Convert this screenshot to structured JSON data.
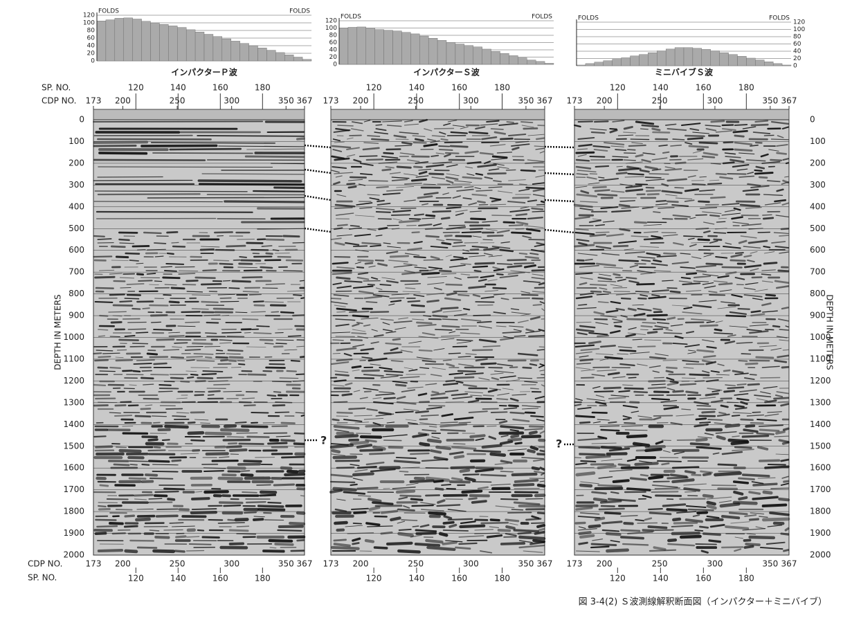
{
  "depth_axis": {
    "label": "DEPTH IN METERS",
    "ticks": [
      0,
      100,
      200,
      300,
      400,
      500,
      600,
      700,
      800,
      900,
      1000,
      1100,
      1200,
      1300,
      1400,
      1500,
      1600,
      1700,
      1800,
      1900,
      2000
    ]
  },
  "row_labels": {
    "sp": "SP. NO.",
    "cdp": "CDP NO."
  },
  "panels": [
    {
      "title": "インパクターＰ波",
      "folds_label_left": "FOLDS",
      "folds_label_right": "FOLDS",
      "fold_ticks": [
        0,
        20,
        40,
        60,
        80,
        100,
        120
      ],
      "folds": [
        105,
        108,
        112,
        113,
        110,
        104,
        100,
        96,
        92,
        88,
        82,
        76,
        70,
        64,
        58,
        52,
        46,
        40,
        34,
        28,
        22,
        16,
        10,
        4
      ],
      "sp_ticks": [
        120,
        140,
        160,
        180
      ],
      "cdp_ticks": [
        173,
        200,
        250,
        300,
        350,
        367
      ]
    },
    {
      "title": "インパクターＳ波",
      "folds_label_left": "FOLDS",
      "folds_label_right": "FOLDS",
      "fold_ticks": [
        0,
        20,
        40,
        60,
        80,
        100,
        120
      ],
      "folds": [
        100,
        102,
        103,
        100,
        96,
        94,
        92,
        88,
        84,
        78,
        72,
        66,
        60,
        56,
        52,
        48,
        42,
        36,
        30,
        24,
        18,
        12,
        8,
        3
      ],
      "sp_ticks": [
        120,
        140,
        160,
        180
      ],
      "cdp_ticks": [
        173,
        200,
        250,
        300,
        350,
        367
      ]
    },
    {
      "title": "ミニバイブＳ波",
      "folds_label_left": "FOLDS",
      "folds_label_right": "FOLDS",
      "fold_ticks": [
        0,
        20,
        40,
        60,
        80,
        100,
        120
      ],
      "folds": [
        2,
        6,
        10,
        14,
        18,
        22,
        27,
        31,
        36,
        41,
        46,
        50,
        50,
        48,
        45,
        41,
        36,
        31,
        26,
        21,
        16,
        11,
        6,
        2
      ],
      "sp_ticks": [
        120,
        140,
        160,
        180
      ],
      "cdp_ticks": [
        173,
        200,
        250,
        300,
        350,
        367
      ]
    }
  ],
  "annotations": [
    "?",
    "?"
  ],
  "caption": "図 3-4(2) Ｓ波測線解釈断面図（インパクター＋ミニバイブ）"
}
